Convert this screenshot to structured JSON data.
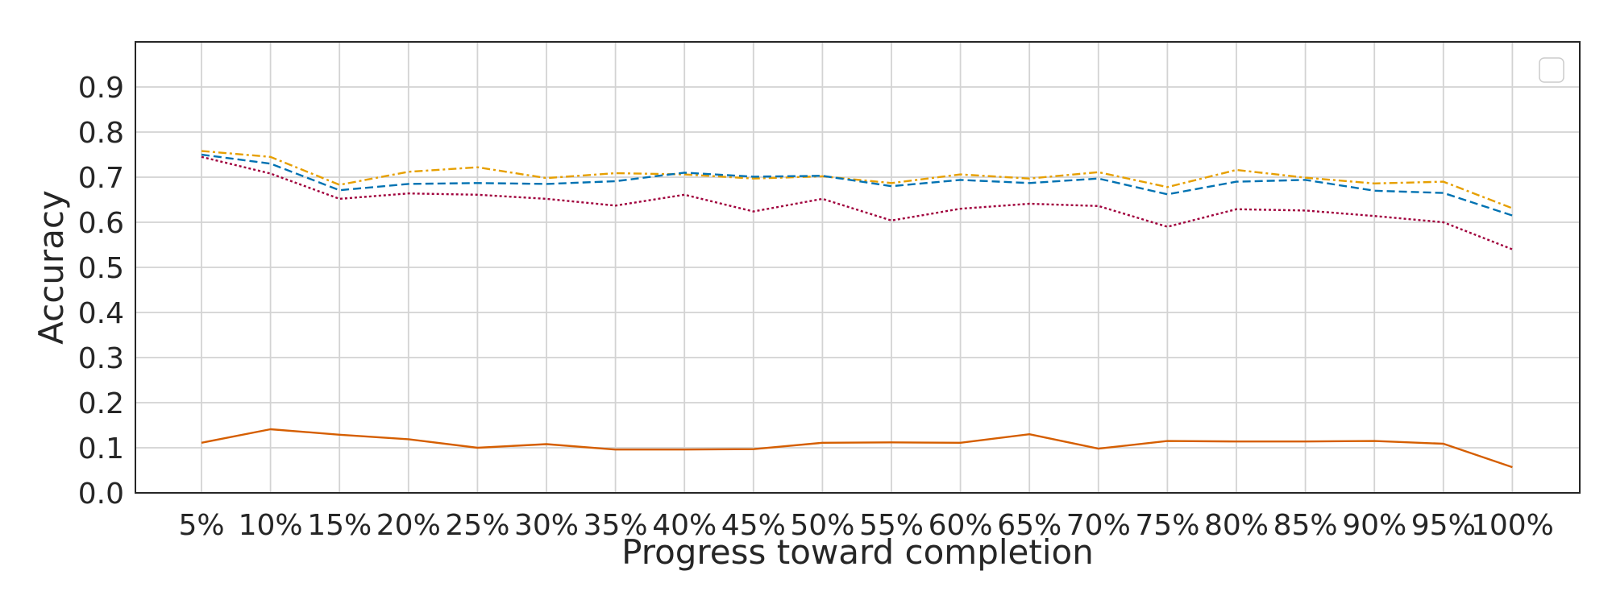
{
  "chart_data": {
    "type": "line",
    "title": "",
    "xlabel": "Progress toward completion",
    "ylabel": "Accuracy",
    "categories": [
      "5%",
      "10%",
      "15%",
      "20%",
      "25%",
      "30%",
      "35%",
      "40%",
      "45%",
      "50%",
      "55%",
      "60%",
      "65%",
      "70%",
      "75%",
      "80%",
      "85%",
      "90%",
      "95%",
      "100%"
    ],
    "ylim": [
      0.0,
      1.0
    ],
    "yticks": [
      "0.0",
      "0.1",
      "0.2",
      "0.3",
      "0.4",
      "0.5",
      "0.6",
      "0.7",
      "0.8",
      "0.9"
    ],
    "grid": true,
    "legend": {
      "placement": "top-right",
      "entries": []
    },
    "series": [
      {
        "color": "#E69F00",
        "linestyle": "dashdot",
        "values": [
          0.758,
          0.745,
          0.683,
          0.712,
          0.722,
          0.698,
          0.709,
          0.706,
          0.697,
          0.702,
          0.687,
          0.706,
          0.697,
          0.711,
          0.678,
          0.716,
          0.699,
          0.686,
          0.69,
          0.631
        ]
      },
      {
        "color": "#0072B2",
        "linestyle": "dashed",
        "values": [
          0.75,
          0.73,
          0.671,
          0.685,
          0.687,
          0.685,
          0.691,
          0.71,
          0.701,
          0.703,
          0.68,
          0.694,
          0.687,
          0.697,
          0.662,
          0.69,
          0.694,
          0.67,
          0.665,
          0.615
        ]
      },
      {
        "color": "#A0003C",
        "linestyle": "dotted",
        "values": [
          0.745,
          0.708,
          0.652,
          0.664,
          0.661,
          0.652,
          0.637,
          0.661,
          0.624,
          0.652,
          0.604,
          0.63,
          0.641,
          0.636,
          0.59,
          0.629,
          0.626,
          0.614,
          0.6,
          0.54
        ]
      },
      {
        "color": "#D55E00",
        "linestyle": "solid",
        "values": [
          0.111,
          0.141,
          0.129,
          0.119,
          0.1,
          0.108,
          0.096,
          0.096,
          0.097,
          0.111,
          0.112,
          0.111,
          0.13,
          0.098,
          0.115,
          0.114,
          0.114,
          0.115,
          0.109,
          0.057
        ]
      }
    ]
  }
}
